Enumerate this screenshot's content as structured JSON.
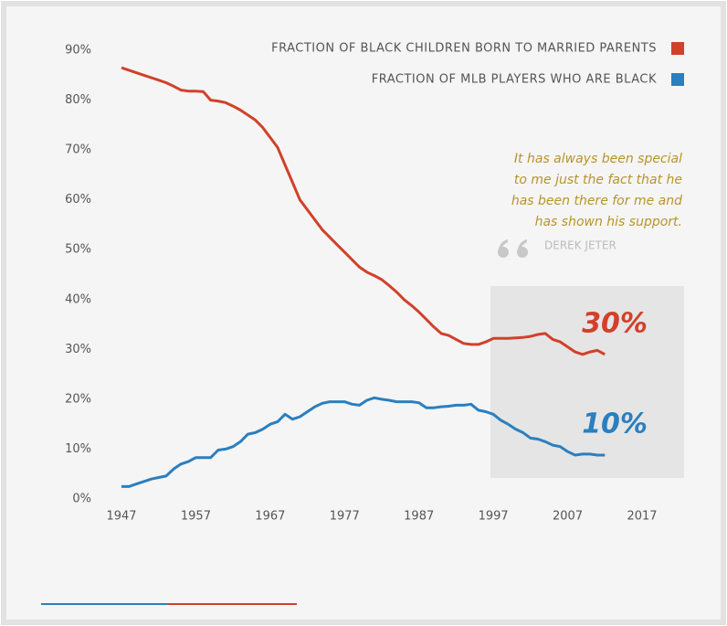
{
  "chart_data": {
    "type": "line",
    "x": [
      1947,
      1948,
      1949,
      1950,
      1951,
      1952,
      1953,
      1954,
      1955,
      1956,
      1957,
      1958,
      1959,
      1960,
      1961,
      1962,
      1963,
      1964,
      1965,
      1966,
      1967,
      1968,
      1969,
      1970,
      1971,
      1972,
      1973,
      1974,
      1975,
      1976,
      1977,
      1978,
      1979,
      1980,
      1981,
      1982,
      1983,
      1984,
      1985,
      1986,
      1987,
      1988,
      1989,
      1990,
      1991,
      1992,
      1993,
      1994,
      1995,
      1996,
      1997,
      1998,
      1999,
      2000,
      2001,
      2002,
      2003,
      2004,
      2005,
      2006,
      2007,
      2008,
      2009,
      2010,
      2011,
      2012
    ],
    "series": [
      {
        "name": "FRACTION OF BLACK CHILDREN BORN TO MARRIED PARENTS",
        "color": "#d2402a",
        "values": [
          86.5,
          86,
          85.5,
          85,
          84.5,
          84,
          83.5,
          82.8,
          82,
          81.8,
          81.8,
          81.7,
          80,
          79.8,
          79.5,
          78.8,
          78,
          77,
          76,
          74.5,
          72.5,
          70.5,
          67,
          63.5,
          60,
          58,
          56,
          54,
          52.5,
          51,
          49.5,
          48,
          46.5,
          45.5,
          44.8,
          44,
          42.8,
          41.5,
          40,
          38.8,
          37.5,
          36,
          34.5,
          33.2,
          32.8,
          32,
          31.2,
          31,
          31,
          31.5,
          32.2,
          32.2,
          32.2,
          32.3,
          32.4,
          32.6,
          33,
          33.2,
          32,
          31.5,
          30.5,
          29.5,
          29,
          29.5,
          29.8,
          29
        ]
      },
      {
        "name": "FRACTION OF MLB PLAYERS WHO ARE BLACK",
        "color": "#2a7fc0",
        "values": [
          2.5,
          2.5,
          3,
          3.5,
          4,
          4.3,
          4.6,
          6,
          7,
          7.5,
          8.3,
          8.3,
          8.3,
          9.8,
          10,
          10.5,
          11.5,
          13,
          13.3,
          14,
          15,
          15.5,
          17,
          16,
          16.5,
          17.5,
          18.5,
          19.2,
          19.5,
          19.5,
          19.5,
          19,
          18.8,
          19.8,
          20.3,
          20,
          19.8,
          19.5,
          19.5,
          19.5,
          19.3,
          18.3,
          18.3,
          18.5,
          18.6,
          18.8,
          18.8,
          19,
          17.8,
          17.5,
          17,
          15.8,
          15,
          14,
          13.3,
          12.2,
          12,
          11.5,
          10.8,
          10.5,
          9.5,
          8.8,
          9,
          9,
          8.8,
          8.8
        ]
      }
    ],
    "xlim": [
      1947,
      2017
    ],
    "xticks": [
      1947,
      1957,
      1967,
      1977,
      1987,
      1997,
      2007,
      2017
    ],
    "ylim": [
      0,
      90
    ],
    "yticks": [
      {
        "value": 0,
        "label": "0%"
      },
      {
        "value": 10,
        "label": "10%"
      },
      {
        "value": 20,
        "label": "20%"
      },
      {
        "value": 30,
        "label": "30%"
      },
      {
        "value": 40,
        "label": "40%"
      },
      {
        "value": 50,
        "label": "50%"
      },
      {
        "value": 60,
        "label": "60%"
      },
      {
        "value": 70,
        "label": "70%"
      },
      {
        "value": 80,
        "label": "80%"
      },
      {
        "value": 90,
        "label": "90%"
      }
    ],
    "annotations": [
      "30%",
      "10%"
    ],
    "quote": [
      "It has always been special",
      "to me just the fact that he",
      "has been there for me and",
      "has shown his support."
    ],
    "quote_author": "DEREK JETER"
  }
}
